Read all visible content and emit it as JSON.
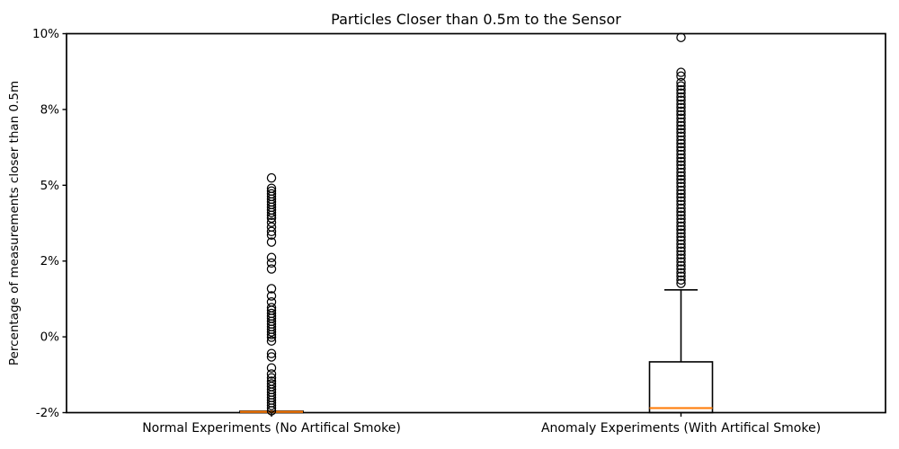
{
  "figure": {
    "background": "#ffffff"
  },
  "chart_data": {
    "type": "boxplot",
    "title": "Particles Closer than 0.5m to the Sensor",
    "ylabel": "Percentage of measurements closer than 0.5m",
    "xlabel": "",
    "ylim": [
      -2,
      10
    ],
    "grid": false,
    "legend": "none",
    "ticks_evenly_spaced": true,
    "y_tick_labels": [
      "10%",
      "8%",
      "5%",
      "2%",
      "0%",
      "-2%"
    ],
    "y_tick_values": [
      10,
      8,
      5,
      2,
      0,
      -2
    ],
    "categories": [
      "Normal Experiments (No Artifical Smoke)",
      "Anomaly Experiments (With Artifical Smoke)"
    ],
    "colors": {
      "box_line": "#000000",
      "median_line": "#ff7f0e",
      "outlier_edge": "#000000",
      "axis": "#000000",
      "background": "#ffffff"
    },
    "boxes": [
      {
        "category": "Normal Experiments (No Artifical Smoke)",
        "q1": -2.0,
        "median": -1.98,
        "q3": -1.96,
        "whisker_low": -2.0,
        "whisker_high": -1.96,
        "outliers": [
          5.29,
          4.88,
          4.77,
          4.66,
          4.56,
          4.45,
          4.34,
          4.24,
          4.13,
          4.02,
          3.92,
          3.81,
          3.7,
          3.53,
          3.35,
          3.17,
          3.03,
          2.75,
          2.14,
          1.95,
          1.79,
          1.27,
          1.08,
          0.92,
          0.77,
          0.7,
          0.62,
          0.55,
          0.49,
          0.41,
          0.34,
          0.27,
          0.2,
          0.13,
          0.06,
          -0.01,
          -0.11,
          -0.44,
          -0.53,
          -0.82,
          -0.98,
          -1.08,
          -1.17,
          -1.24,
          -1.31,
          -1.39,
          -1.46,
          -1.53,
          -1.6,
          -1.67,
          -1.74,
          -1.81,
          -1.88,
          -1.95
        ]
      },
      {
        "category": "Anomaly Experiments (With Artifical Smoke)",
        "q1": -2.0,
        "median": -1.88,
        "q3": -0.66,
        "whisker_low": -2.0,
        "whisker_high": 1.24,
        "outliers": [
          9.9,
          8.98,
          8.88,
          8.71,
          8.62,
          8.52,
          8.43,
          8.33,
          8.24,
          8.14,
          8.05,
          7.93,
          7.79,
          7.65,
          7.5,
          7.36,
          7.22,
          7.08,
          6.94,
          6.79,
          6.65,
          6.51,
          6.37,
          6.22,
          6.08,
          5.94,
          5.8,
          5.66,
          5.51,
          5.37,
          5.23,
          5.09,
          4.95,
          4.8,
          4.66,
          4.52,
          4.38,
          4.24,
          4.09,
          3.95,
          3.81,
          3.67,
          3.53,
          3.38,
          3.24,
          3.1,
          2.96,
          2.82,
          2.67,
          2.53,
          2.39,
          2.25,
          2.11,
          1.98,
          1.88,
          1.79,
          1.69,
          1.6,
          1.5,
          1.41
        ]
      }
    ]
  }
}
